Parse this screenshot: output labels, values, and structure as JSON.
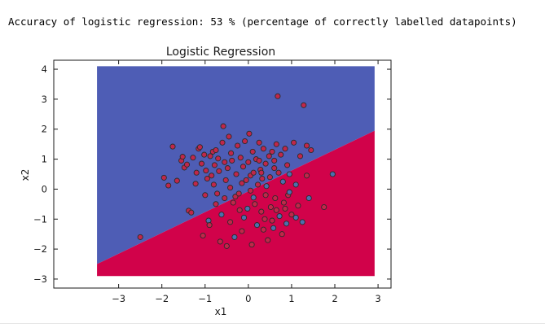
{
  "output": {
    "text": "Accuracy of logistic regression: 53 % (percentage of correctly labelled datapoints)"
  },
  "colors": {
    "region_blue": "#4e5db5",
    "region_red": "#d1024a",
    "point_red": "#c0274a",
    "point_blue": "#4d6fae",
    "point_edge": "#2b2b2b",
    "axis": "#1a1a1a",
    "page_background": "#ffffff"
  },
  "chart_data": {
    "type": "scatter",
    "title": "Logistic Regression",
    "xlabel": "x1",
    "ylabel": "x2",
    "xlim": [
      -4.5,
      3.3
    ],
    "ylim": [
      -3.3,
      4.3
    ],
    "grid": false,
    "xticks": [
      -3,
      -2,
      -1,
      0,
      1,
      2,
      3
    ],
    "yticks": [
      -3,
      -2,
      -1,
      0,
      1,
      2,
      3,
      4
    ],
    "xtick_labels": [
      "−3",
      "−2",
      "−1",
      "0",
      "1",
      "2",
      "3"
    ],
    "ytick_labels": [
      "−3",
      "−2",
      "−1",
      "0",
      "1",
      "2",
      "3",
      "4"
    ],
    "decision_region": {
      "x_range": [
        -3.5,
        2.92
      ],
      "y_range": [
        -2.9,
        4.1
      ],
      "boundary_line": {
        "x": [
          -3.5,
          2.92
        ],
        "y": [
          -2.5,
          1.95
        ]
      },
      "above_label": "blue",
      "below_label": "red"
    },
    "series": [
      {
        "points": [
          [
            -2.5,
            -1.6
          ],
          [
            -1.95,
            0.38
          ],
          [
            -1.85,
            0.12
          ],
          [
            -1.75,
            1.42
          ],
          [
            -1.65,
            0.28
          ],
          [
            -1.55,
            0.95
          ],
          [
            -1.52,
            1.08
          ],
          [
            -1.48,
            0.72
          ],
          [
            -1.42,
            0.82
          ],
          [
            -1.38,
            -0.72
          ],
          [
            -1.32,
            -0.78
          ],
          [
            -1.28,
            1.05
          ],
          [
            -1.22,
            0.18
          ],
          [
            -1.2,
            0.55
          ],
          [
            -1.15,
            1.35
          ],
          [
            -1.12,
            1.4
          ],
          [
            -1.08,
            0.85
          ],
          [
            -1.05,
            -1.55
          ],
          [
            -1.02,
            1.15
          ],
          [
            -0.98,
            0.62
          ],
          [
            -0.95,
            0.35
          ],
          [
            -0.92,
            -1.05
          ],
          [
            -0.9,
            -1.2
          ],
          [
            -0.88,
            1.1
          ],
          [
            -0.85,
            0.45
          ],
          [
            -0.82,
            1.25
          ],
          [
            -0.8,
            0.15
          ],
          [
            -0.78,
            0.8
          ],
          [
            -0.75,
            1.3
          ],
          [
            -0.72,
            -0.15
          ],
          [
            -0.7,
            1.02
          ],
          [
            -0.68,
            0.6
          ],
          [
            -0.65,
            -1.75
          ],
          [
            -0.62,
            -0.85
          ],
          [
            -0.6,
            1.55
          ],
          [
            -0.58,
            2.1
          ],
          [
            -0.55,
            0.9
          ],
          [
            -0.52,
            0.3
          ],
          [
            -0.5,
            -1.9
          ],
          [
            -0.48,
            0.7
          ],
          [
            -0.45,
            1.75
          ],
          [
            -0.42,
            0.05
          ],
          [
            -0.4,
            1.2
          ],
          [
            -0.38,
            0.95
          ],
          [
            -0.35,
            -0.45
          ],
          [
            -0.32,
            -1.6
          ],
          [
            -0.3,
            -0.25
          ],
          [
            -0.28,
            0.5
          ],
          [
            -0.25,
            1.45
          ],
          [
            -0.22,
            -0.15
          ],
          [
            -0.2,
            -0.7
          ],
          [
            -0.18,
            1.05
          ],
          [
            -0.15,
            0.2
          ],
          [
            -0.12,
            0.75
          ],
          [
            -0.1,
            -0.95
          ],
          [
            -0.08,
            1.6
          ],
          [
            -0.05,
            0.3
          ],
          [
            -0.02,
            -0.65
          ],
          [
            0.0,
            0.9
          ],
          [
            0.02,
            1.85
          ],
          [
            0.05,
            0.45
          ],
          [
            0.08,
            -1.85
          ],
          [
            0.1,
            1.25
          ],
          [
            0.12,
            0.55
          ],
          [
            0.15,
            -0.5
          ],
          [
            0.18,
            1.0
          ],
          [
            0.2,
            -1.2
          ],
          [
            0.22,
            0.15
          ],
          [
            0.25,
            1.55
          ],
          [
            0.28,
            0.65
          ],
          [
            0.3,
            -0.75
          ],
          [
            0.32,
            0.35
          ],
          [
            0.35,
            1.35
          ],
          [
            0.38,
            -1.0
          ],
          [
            0.4,
            0.85
          ],
          [
            0.42,
            0.1
          ],
          [
            0.45,
            -1.7
          ],
          [
            0.48,
            1.1
          ],
          [
            0.5,
            0.4
          ],
          [
            0.52,
            -0.6
          ],
          [
            0.55,
            1.25
          ],
          [
            0.58,
            -1.3
          ],
          [
            0.6,
            0.7
          ],
          [
            0.62,
            -0.3
          ],
          [
            0.65,
            1.5
          ],
          [
            0.68,
            3.1
          ],
          [
            0.7,
            0.55
          ],
          [
            0.72,
            -0.9
          ],
          [
            0.75,
            1.15
          ],
          [
            0.78,
            -1.5
          ],
          [
            0.8,
            0.25
          ],
          [
            0.82,
            -0.45
          ],
          [
            0.85,
            1.35
          ],
          [
            0.88,
            -1.15
          ],
          [
            0.9,
            0.8
          ],
          [
            0.92,
            -0.2
          ],
          [
            0.95,
            0.5
          ],
          [
            1.0,
            -0.85
          ],
          [
            1.05,
            1.55
          ],
          [
            1.1,
            0.15
          ],
          [
            1.15,
            -0.55
          ],
          [
            1.2,
            1.1
          ],
          [
            1.25,
            -1.1
          ],
          [
            1.28,
            2.8
          ],
          [
            1.35,
            0.45
          ],
          [
            1.4,
            -0.3
          ],
          [
            1.45,
            1.3
          ],
          [
            1.75,
            -0.6
          ],
          [
            1.95,
            0.5
          ],
          [
            0.35,
            -1.35
          ],
          [
            -0.15,
            -1.4
          ],
          [
            0.95,
            -0.1
          ],
          [
            -0.42,
            -1.1
          ],
          [
            0.6,
            0.95
          ],
          [
            0.12,
            -0.28
          ],
          [
            1.35,
            1.45
          ],
          [
            0.25,
            0.95
          ],
          [
            -0.55,
            -0.3
          ],
          [
            0.4,
            -0.2
          ],
          [
            0.65,
            -0.7
          ],
          [
            -0.75,
            -0.5
          ],
          [
            0.05,
            -0.05
          ],
          [
            0.3,
            0.55
          ],
          [
            -1.0,
            -0.2
          ],
          [
            0.55,
            -1.05
          ],
          [
            0.85,
            -0.65
          ],
          [
            1.1,
            -0.95
          ]
        ]
      }
    ]
  }
}
